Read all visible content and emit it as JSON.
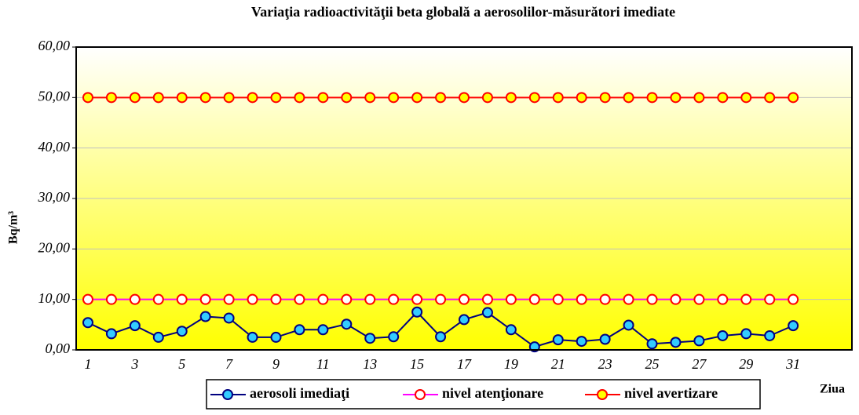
{
  "chart_data": {
    "type": "line",
    "title": "Variaţia radioactivităţii beta globală a aerosolilor-măsurători imediate",
    "y_label": "Bq/m³",
    "x_label": "Ziua",
    "categories": [
      "1",
      null,
      "3",
      null,
      "5",
      null,
      "7",
      null,
      "9",
      null,
      "11",
      null,
      "13",
      null,
      "15",
      null,
      "17",
      null,
      "19",
      null,
      "21",
      null,
      "23",
      null,
      "25",
      null,
      "27",
      null,
      "29",
      null,
      "31",
      null,
      null
    ],
    "series": [
      {
        "name": "aerosoli imediaţi",
        "color": "#000080",
        "marker_fill": "#33ccff",
        "marker_stroke": "#000080",
        "values": [
          5.4,
          3.2,
          4.8,
          2.5,
          3.7,
          6.6,
          6.3,
          2.5,
          2.5,
          4.0,
          4.0,
          5.1,
          2.3,
          2.6,
          7.5,
          2.6,
          6.0,
          7.4,
          4.0,
          0.6,
          2.0,
          1.7,
          2.1,
          4.9,
          1.2,
          1.5,
          1.8,
          2.8,
          3.2,
          2.8,
          4.8,
          null,
          null
        ]
      },
      {
        "name": "nivel atenţionare",
        "color": "#ff00ff",
        "marker_fill": "#ffffff",
        "marker_stroke": "#ff0000",
        "values": [
          10,
          10,
          10,
          10,
          10,
          10,
          10,
          10,
          10,
          10,
          10,
          10,
          10,
          10,
          10,
          10,
          10,
          10,
          10,
          10,
          10,
          10,
          10,
          10,
          10,
          10,
          10,
          10,
          10,
          10,
          10,
          null,
          null
        ]
      },
      {
        "name": "nivel avertizare",
        "color": "#ff0000",
        "marker_fill": "#ffff00",
        "marker_stroke": "#ff0000",
        "values": [
          50,
          50,
          50,
          50,
          50,
          50,
          50,
          50,
          50,
          50,
          50,
          50,
          50,
          50,
          50,
          50,
          50,
          50,
          50,
          50,
          50,
          50,
          50,
          50,
          50,
          50,
          50,
          50,
          50,
          50,
          50,
          null,
          null
        ]
      }
    ],
    "ylim": [
      0,
      60
    ],
    "yticks": [
      {
        "value": 0,
        "label": "0,00"
      },
      {
        "value": 10,
        "label": "10,00"
      },
      {
        "value": 20,
        "label": "20,00"
      },
      {
        "value": 30,
        "label": "30,00"
      },
      {
        "value": 40,
        "label": "40,00"
      },
      {
        "value": 50,
        "label": "50,00"
      },
      {
        "value": 60,
        "label": "60,00"
      }
    ],
    "grid": true,
    "legend": "bottom"
  }
}
